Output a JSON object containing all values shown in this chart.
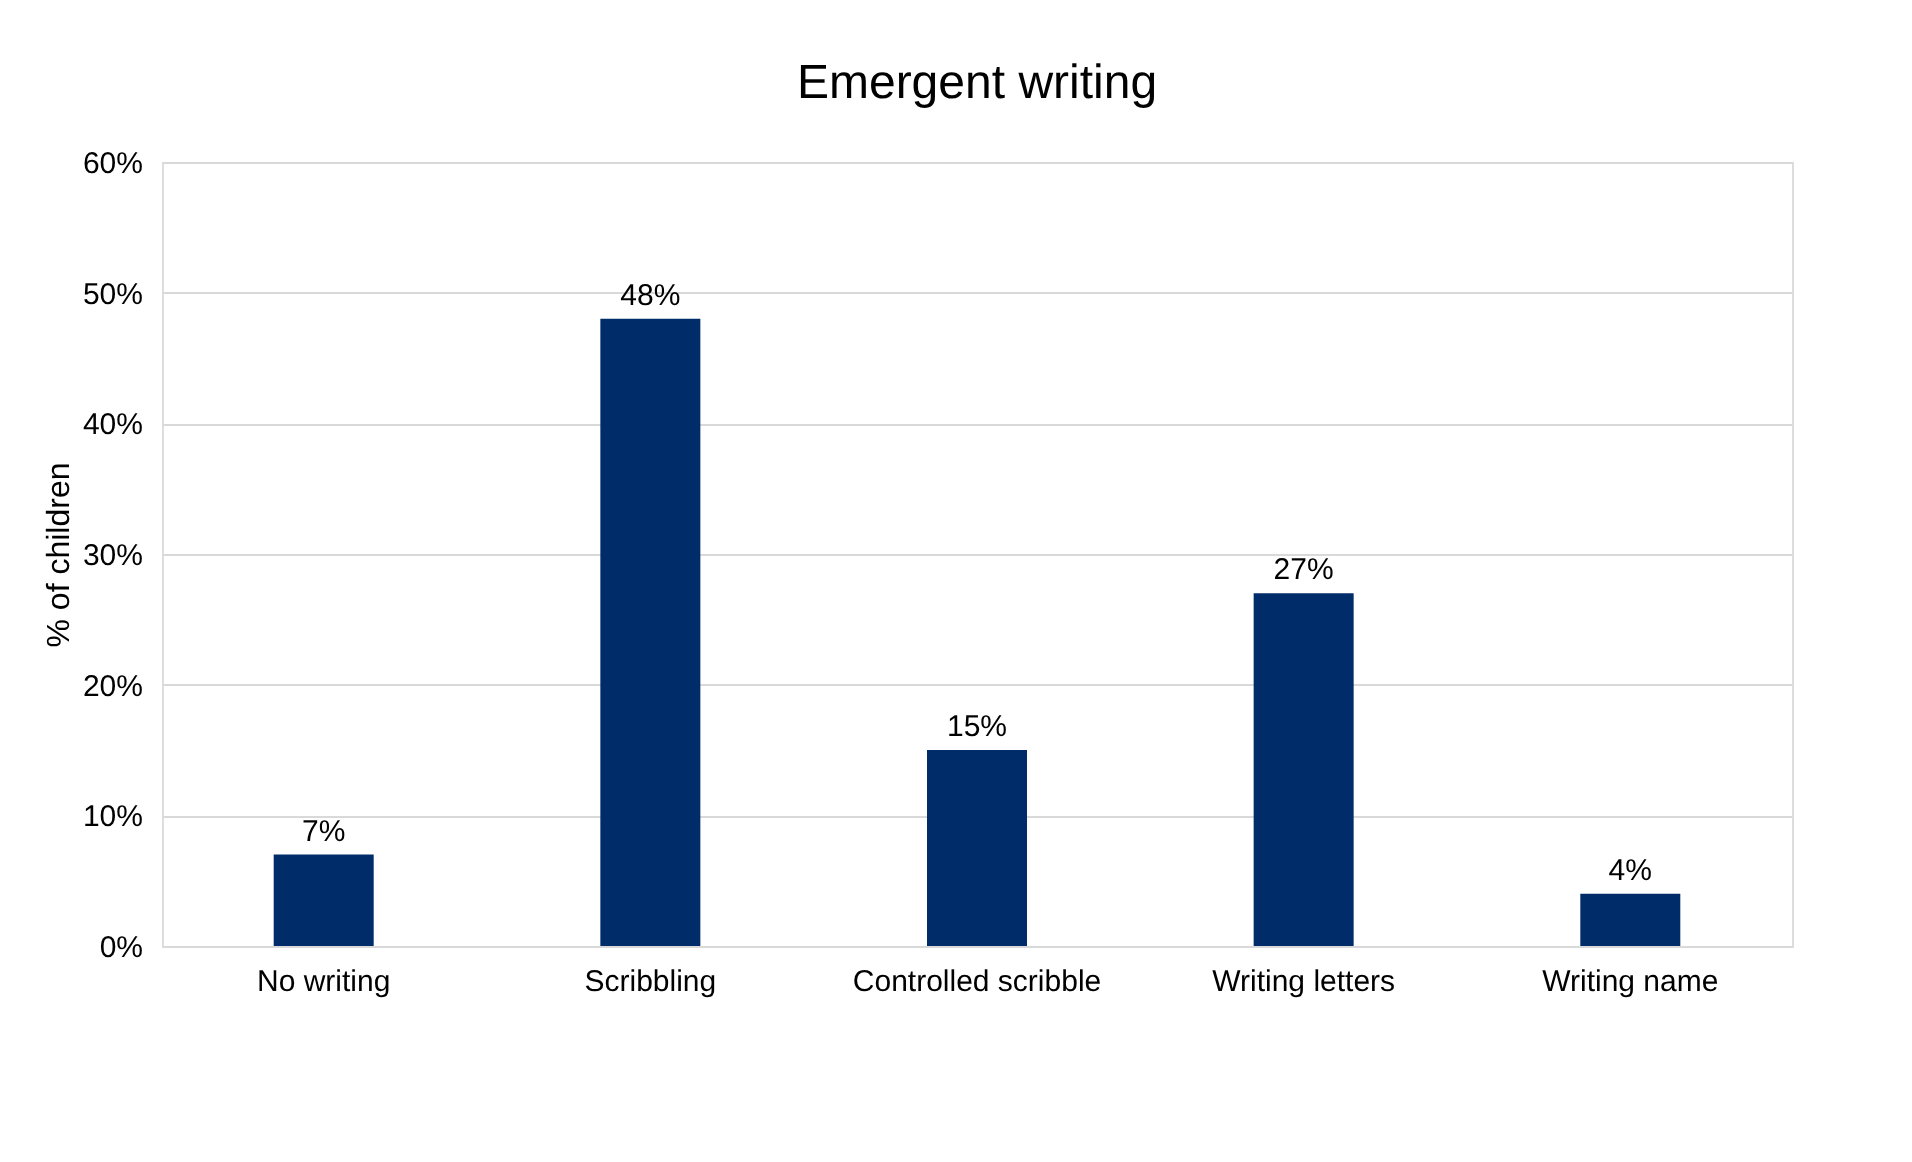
{
  "chart_data": {
    "type": "bar",
    "title": "Emergent writing",
    "ylabel": "% of children",
    "categories": [
      "No writing",
      "Scribbling",
      "Controlled scribble",
      "Writing letters",
      "Writing name"
    ],
    "values": [
      7,
      48,
      15,
      27,
      4
    ],
    "value_labels": [
      "7%",
      "48%",
      "15%",
      "27%",
      "4%"
    ],
    "color": "#002d6a",
    "ylim": [
      0,
      60
    ],
    "yticks": [
      {
        "value": 0,
        "label": "0%"
      },
      {
        "value": 10,
        "label": "10%"
      },
      {
        "value": 20,
        "label": "20%"
      },
      {
        "value": 30,
        "label": "30%"
      },
      {
        "value": 40,
        "label": "40%"
      },
      {
        "value": 50,
        "label": "50%"
      },
      {
        "value": 60,
        "label": "60%"
      }
    ],
    "grid": "y"
  }
}
